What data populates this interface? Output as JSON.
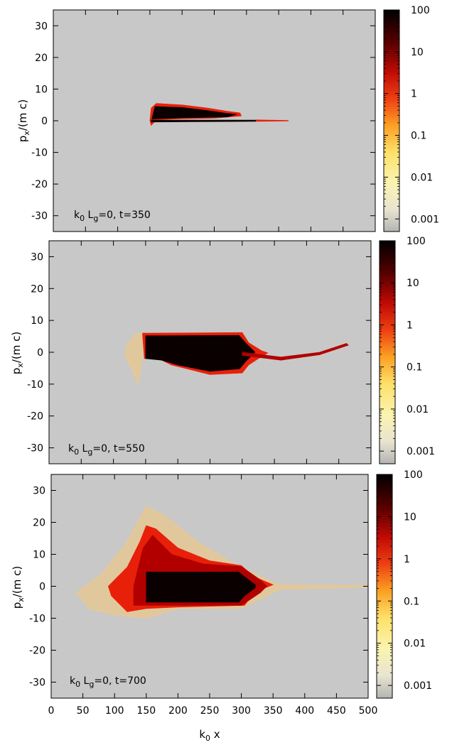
{
  "chart_data": [
    {
      "type": "heatmap",
      "annotation": {
        "pre": "k",
        "sub1": "0",
        "mid": " L",
        "sub2": "g",
        "post": "=0, t=350"
      },
      "ylabel": {
        "main": "p",
        "sub": "x",
        "rest": "/(m c)"
      },
      "xlim": [
        0,
        500
      ],
      "ylim": [
        -35,
        35
      ],
      "yticks": [
        30,
        20,
        10,
        0,
        -10,
        -20,
        -30
      ],
      "colorbar": {
        "scale": "log",
        "range": [
          0.0005,
          100
        ],
        "ticks": [
          "100",
          "10",
          "1",
          "0.1",
          "0.01",
          "0.001"
        ],
        "tick_values": [
          100,
          10,
          1,
          0.1,
          0.01,
          0.001
        ]
      },
      "background_color": "#c8c8c8",
      "regions": [
        {
          "level": "low",
          "poly": [
            [
              150,
              0
            ],
            [
              152,
              4
            ],
            [
              160,
              5.5
            ],
            [
              200,
              5
            ],
            [
              240,
              4
            ],
            [
              270,
              3
            ],
            [
              290,
              2.5
            ],
            [
              292,
              1.5
            ],
            [
              250,
              0.8
            ],
            [
              200,
              0.6
            ],
            [
              160,
              0.3
            ],
            [
              152,
              -1.5
            ]
          ]
        },
        {
          "level": "high",
          "poly": [
            [
              153,
              0.5
            ],
            [
              158,
              4.5
            ],
            [
              200,
              4.2
            ],
            [
              240,
              3.2
            ],
            [
              270,
              2.3
            ],
            [
              285,
              2
            ],
            [
              270,
              1.2
            ],
            [
              200,
              0.9
            ],
            [
              160,
              0.6
            ]
          ]
        },
        {
          "level": "high",
          "poly": [
            [
              152,
              0.2
            ],
            [
              315,
              0.2
            ],
            [
              315,
              -0.2
            ],
            [
              152,
              -0.4
            ]
          ]
        },
        {
          "level": "low",
          "poly": [
            [
              315,
              0.3
            ],
            [
              365,
              0.1
            ],
            [
              365,
              -0.1
            ],
            [
              315,
              -0.2
            ]
          ]
        }
      ]
    },
    {
      "type": "heatmap",
      "annotation": {
        "pre": "k",
        "sub1": "0",
        "mid": " L",
        "sub2": "g",
        "post": "=0, t=550"
      },
      "ylabel": {
        "main": "p",
        "sub": "x",
        "rest": "/(m c)"
      },
      "xlim": [
        0,
        500
      ],
      "ylim": [
        -35,
        35
      ],
      "yticks": [
        30,
        20,
        10,
        0,
        -10,
        -20,
        -30
      ],
      "colorbar": {
        "scale": "log",
        "range": [
          0.0005,
          100
        ],
        "ticks": [
          "100",
          "10",
          "1",
          "0.1",
          "0.01",
          "0.001"
        ],
        "tick_values": [
          100,
          10,
          1,
          0.1,
          0.01,
          0.001
        ]
      },
      "background_color": "#c8c8c8",
      "regions": [
        {
          "level": "faint",
          "poly": [
            [
              120,
              2
            ],
            [
              135,
              6
            ],
            [
              148,
              6
            ],
            [
              145,
              -2
            ],
            [
              138,
              -10
            ],
            [
              130,
              -6
            ],
            [
              118,
              -1
            ]
          ]
        },
        {
          "level": "low",
          "poly": [
            [
              145,
              6
            ],
            [
              300,
              6.2
            ],
            [
              310,
              3
            ],
            [
              330,
              0.5
            ],
            [
              340,
              -0.2
            ],
            [
              325,
              -2
            ],
            [
              310,
              -4
            ],
            [
              300,
              -6.5
            ],
            [
              250,
              -7
            ],
            [
              190,
              -4
            ],
            [
              170,
              -2
            ],
            [
              148,
              -2
            ]
          ]
        },
        {
          "level": "high",
          "poly": [
            [
              150,
              5.2
            ],
            [
              295,
              5.3
            ],
            [
              305,
              3
            ],
            [
              320,
              0
            ],
            [
              305,
              -3
            ],
            [
              296,
              -5.2
            ],
            [
              250,
              -6
            ],
            [
              200,
              -4
            ],
            [
              175,
              -2.5
            ],
            [
              150,
              -2
            ]
          ]
        },
        {
          "level": "mid",
          "poly": [
            [
              300,
              0
            ],
            [
              360,
              -1.5
            ],
            [
              420,
              0
            ],
            [
              462,
              2.8
            ],
            [
              465,
              2.2
            ],
            [
              420,
              -0.8
            ],
            [
              360,
              -2.5
            ],
            [
              300,
              -1
            ]
          ]
        }
      ]
    },
    {
      "type": "heatmap",
      "annotation": {
        "pre": "k",
        "sub1": "0",
        "mid": " L",
        "sub2": "g",
        "post": "=0, t=700"
      },
      "ylabel": {
        "main": "p",
        "sub": "x",
        "rest": "/(m c)"
      },
      "xlabel": {
        "main": "k",
        "sub": "0",
        "rest": " x"
      },
      "xlim": [
        0,
        500
      ],
      "ylim": [
        -35,
        35
      ],
      "xticks": [
        0,
        50,
        100,
        150,
        200,
        250,
        300,
        350,
        400,
        450,
        500
      ],
      "yticks": [
        30,
        20,
        10,
        0,
        -10,
        -20,
        -30
      ],
      "colorbar": {
        "scale": "log",
        "range": [
          0.0005,
          100
        ],
        "ticks": [
          "100",
          "10",
          "1",
          "0.1",
          "0.01",
          "0.001"
        ],
        "tick_values": [
          100,
          10,
          1,
          0.1,
          0.01,
          0.001
        ]
      },
      "background_color": "#c8c8c8",
      "regions": [
        {
          "level": "faint",
          "poly": [
            [
              40,
              -2
            ],
            [
              80,
              4
            ],
            [
              120,
              14
            ],
            [
              150,
              25
            ],
            [
              180,
              22
            ],
            [
              230,
              14
            ],
            [
              280,
              8
            ],
            [
              330,
              3
            ],
            [
              360,
              0.5
            ],
            [
              500,
              0.2
            ],
            [
              500,
              -0.2
            ],
            [
              360,
              -1
            ],
            [
              300,
              -7
            ],
            [
              200,
              -7
            ],
            [
              150,
              -10
            ],
            [
              100,
              -9
            ],
            [
              60,
              -7
            ]
          ]
        },
        {
          "level": "low",
          "poly": [
            [
              90,
              0
            ],
            [
              120,
              6
            ],
            [
              140,
              14
            ],
            [
              150,
              19
            ],
            [
              165,
              18
            ],
            [
              200,
              12
            ],
            [
              250,
              8
            ],
            [
              300,
              6.5
            ],
            [
              320,
              3
            ],
            [
              350,
              0.5
            ],
            [
              320,
              -2
            ],
            [
              305,
              -6
            ],
            [
              200,
              -6.5
            ],
            [
              150,
              -7
            ],
            [
              120,
              -8
            ],
            [
              95,
              -3
            ]
          ]
        },
        {
          "level": "mid",
          "poly": [
            [
              130,
              0
            ],
            [
              145,
              12
            ],
            [
              160,
              16
            ],
            [
              190,
              10
            ],
            [
              240,
              7
            ],
            [
              300,
              6.2
            ],
            [
              330,
              2
            ],
            [
              340,
              0
            ],
            [
              330,
              -2
            ],
            [
              300,
              -6
            ],
            [
              150,
              -6
            ],
            [
              130,
              -6
            ]
          ]
        },
        {
          "level": "high",
          "poly": [
            [
              150,
              4.5
            ],
            [
              296,
              4.5
            ],
            [
              305,
              3
            ],
            [
              322,
              0.5
            ],
            [
              322,
              -0.5
            ],
            [
              305,
              -3
            ],
            [
              296,
              -5
            ],
            [
              150,
              -5
            ]
          ]
        }
      ]
    }
  ]
}
